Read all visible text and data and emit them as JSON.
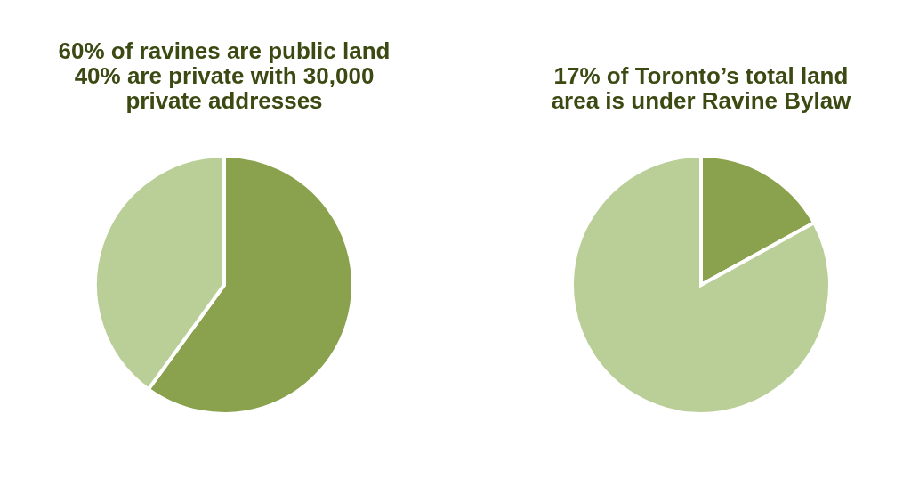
{
  "chart_data": [
    {
      "type": "pie",
      "title": "60% of ravines are public land\n40% are private with 30,000\nprivate addresses",
      "categories": [
        null,
        null
      ],
      "values": [
        60,
        40
      ],
      "colors": [
        "#8aa24e",
        "#bacf98"
      ]
    },
    {
      "type": "pie",
      "title": "17% of Toronto’s total land\narea is under Ravine Bylaw",
      "categories": [
        null,
        null
      ],
      "values": [
        17,
        83
      ],
      "colors": [
        "#8aa24e",
        "#bacf98"
      ]
    }
  ]
}
